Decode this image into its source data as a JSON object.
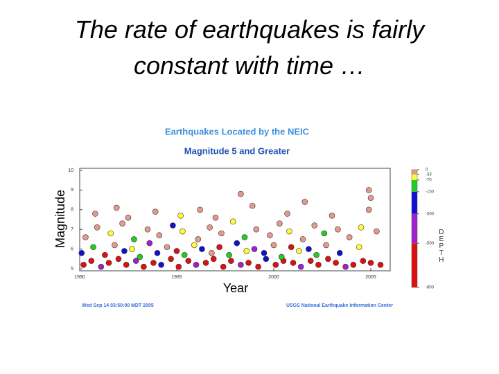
{
  "slide_title": [
    "The rate of earthquakes is fairly",
    "constant with time …"
  ],
  "chart_data": {
    "type": "scatter",
    "title": "Earthquakes Located by the NEIC",
    "subtitle": "Magnitude 5 and Greater",
    "xlabel": "Year",
    "ylabel": "Magnitude",
    "xlim": [
      1990,
      2006
    ],
    "xticks": [
      1990,
      1995,
      2000,
      2005
    ],
    "ylim": [
      5,
      10
    ],
    "yticks": [
      5,
      6,
      7,
      8,
      9,
      10
    ],
    "x": [
      1990.2,
      1990.6,
      1991.1,
      1991.5,
      1992.0,
      1992.4,
      1992.9,
      1993.3,
      1993.8,
      1994.2,
      1994.7,
      1995.1,
      1995.6,
      1996.0,
      1996.5,
      1996.9,
      1997.4,
      1997.8,
      1998.3,
      1998.7,
      1999.2,
      1999.6,
      2000.1,
      2000.5,
      2001.0,
      2001.4,
      2001.9,
      2002.3,
      2002.8,
      2003.2,
      2003.7,
      2004.1,
      2004.6,
      2005.0,
      2005.5,
      1990.1,
      1990.7,
      1991.3,
      1991.8,
      1992.3,
      1992.7,
      1993.1,
      1993.6,
      1994.0,
      1994.5,
      1995.0,
      1995.4,
      1995.9,
      1996.3,
      1996.8,
      1997.2,
      1997.7,
      1998.1,
      1998.6,
      1999.0,
      1999.5,
      2000.0,
      2000.4,
      2000.9,
      2001.3,
      2001.8,
      2002.2,
      2002.7,
      2003.4,
      2004.4,
      1990.3,
      1990.9,
      1991.6,
      1992.2,
      1992.8,
      1993.5,
      1994.1,
      1994.8,
      1995.3,
      1996.1,
      1996.7,
      1997.3,
      1997.9,
      1998.5,
      1999.1,
      1999.8,
      2000.3,
      2000.8,
      2001.5,
      2002.1,
      2002.6,
      2003.3,
      2003.9,
      2004.5,
      2005.3,
      1990.8,
      1991.9,
      1992.5,
      1993.9,
      1995.2,
      1996.2,
      1997.0,
      1998.9,
      2000.7,
      2001.6,
      2003.0,
      2004.9,
      1998.3,
      2004.9,
      2005.0
    ],
    "y": [
      5.2,
      5.4,
      5.1,
      5.3,
      5.5,
      5.2,
      5.4,
      5.1,
      5.3,
      5.2,
      5.5,
      5.1,
      5.4,
      5.2,
      5.3,
      5.5,
      5.1,
      5.4,
      5.2,
      5.3,
      5.1,
      5.5,
      5.2,
      5.4,
      5.3,
      5.1,
      5.4,
      5.2,
      5.5,
      5.3,
      5.1,
      5.2,
      5.4,
      5.3,
      5.2,
      5.8,
      6.1,
      5.7,
      6.2,
      5.9,
      6.0,
      5.6,
      6.3,
      5.8,
      6.1,
      5.9,
      5.7,
      6.2,
      6.0,
      5.8,
      6.1,
      5.7,
      6.3,
      5.9,
      6.0,
      5.8,
      6.2,
      5.6,
      6.1,
      5.9,
      6.0,
      5.7,
      6.2,
      5.8,
      6.1,
      6.6,
      7.1,
      6.8,
      7.3,
      6.5,
      7.0,
      6.7,
      7.2,
      6.9,
      6.5,
      7.1,
      6.8,
      7.4,
      6.6,
      7.0,
      6.7,
      7.3,
      6.9,
      6.5,
      7.2,
      6.8,
      7.0,
      6.6,
      7.1,
      6.9,
      7.8,
      8.1,
      7.6,
      7.9,
      7.7,
      8.0,
      7.6,
      8.2,
      7.8,
      8.4,
      7.7,
      8.0,
      8.8,
      9.0,
      8.6
    ],
    "depth": [
      -600,
      -600,
      -400,
      -600,
      -600,
      -600,
      -400,
      -600,
      -600,
      -200,
      -600,
      -600,
      -600,
      -400,
      -600,
      -600,
      -600,
      -600,
      -400,
      -600,
      -600,
      -200,
      -600,
      -600,
      -600,
      -400,
      -600,
      -600,
      -600,
      -600,
      -400,
      -600,
      -600,
      -600,
      -600,
      -200,
      -100,
      -600,
      -20,
      -200,
      -50,
      -100,
      -400,
      -200,
      -10,
      -600,
      -100,
      -50,
      -200,
      -20,
      -600,
      -100,
      -200,
      -50,
      -400,
      -200,
      -10,
      -100,
      -600,
      -50,
      -200,
      -100,
      -20,
      -200,
      -50,
      -10,
      -20,
      -50,
      -10,
      -100,
      -20,
      -10,
      -200,
      -50,
      -10,
      -20,
      -10,
      -50,
      -100,
      -10,
      -20,
      -10,
      -50,
      -20,
      -10,
      -100,
      -10,
      -20,
      -50,
      -10,
      -10,
      -20,
      -10,
      -10,
      -50,
      -10,
      -20,
      -10,
      -10,
      -20,
      -10,
      -10,
      -10,
      -10,
      -20
    ],
    "colorbar": {
      "label": "DEPTH",
      "lim": [
        0,
        -800
      ],
      "ticks": [
        0,
        -33,
        -70,
        -150,
        -300,
        -500,
        -800
      ],
      "colors": [
        "#e39a8c",
        "#ffff33",
        "#22cc22",
        "#1010d0",
        "#a020d0",
        "#dd1010"
      ]
    },
    "footer_left": "Wed Sep 14 03:50:00 MDT 2005",
    "footer_right": "USGS National Earthquake Information Center"
  }
}
